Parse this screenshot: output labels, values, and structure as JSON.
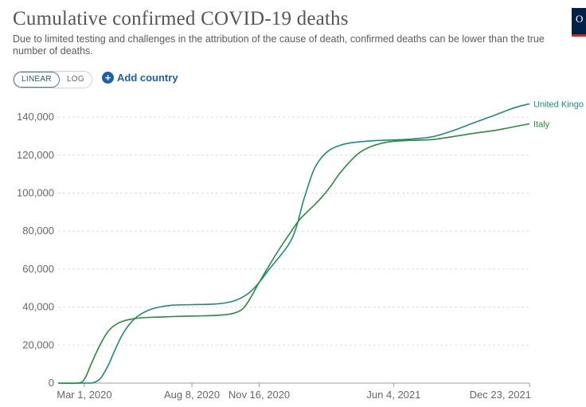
{
  "header": {
    "title": "Cumulative confirmed COVID-19 deaths",
    "subtitle": "Due to limited testing and challenges in the attribution of the cause of death, confirmed deaths can be lower than the true number of deaths.",
    "logo_text": "O"
  },
  "controls": {
    "scale_options": [
      "LINEAR",
      "LOG"
    ],
    "selected_scale": "LINEAR",
    "add_country_label": "Add country",
    "add_icon": "plus-circle-icon"
  },
  "colors": {
    "united_kingdom": "#1c8a7d",
    "italy": "#2a8a3e",
    "grid": "#dddddd",
    "axis": "#666666",
    "accent": "#1d5fa6"
  },
  "chart_data": {
    "type": "line",
    "title": "Cumulative confirmed COVID-19 deaths",
    "xlabel": "",
    "ylabel": "",
    "xlim": [
      "2020-01-22",
      "2021-12-23"
    ],
    "ylim": [
      0,
      148000
    ],
    "x_ticks": [
      "Mar 1, 2020",
      "Aug 8, 2020",
      "Nov 16, 2020",
      "Jun 4, 2021",
      "Dec 23, 2021"
    ],
    "y_ticks": [
      "0",
      "20,000",
      "40,000",
      "60,000",
      "80,000",
      "100,000",
      "120,000",
      "140,000"
    ],
    "y_tick_values": [
      0,
      20000,
      40000,
      60000,
      80000,
      100000,
      120000,
      140000
    ],
    "grid": true,
    "legend": "line-end labels",
    "series": [
      {
        "name": "United Kingdom",
        "display_label": "United Kingo",
        "color": "#1c8a7d",
        "points": [
          [
            "2020-01-22",
            0
          ],
          [
            "2020-03-05",
            0
          ],
          [
            "2020-03-15",
            300
          ],
          [
            "2020-03-25",
            2500
          ],
          [
            "2020-04-05",
            9000
          ],
          [
            "2020-04-15",
            17000
          ],
          [
            "2020-04-25",
            24500
          ],
          [
            "2020-05-05",
            30000
          ],
          [
            "2020-05-15",
            34000
          ],
          [
            "2020-05-25",
            36500
          ],
          [
            "2020-06-05",
            38500
          ],
          [
            "2020-06-20",
            40000
          ],
          [
            "2020-07-10",
            41000
          ],
          [
            "2020-08-08",
            41300
          ],
          [
            "2020-09-10",
            41600
          ],
          [
            "2020-10-01",
            42500
          ],
          [
            "2020-10-15",
            44000
          ],
          [
            "2020-11-01",
            47500
          ],
          [
            "2020-11-16",
            53000
          ],
          [
            "2020-12-01",
            60000
          ],
          [
            "2020-12-15",
            66000
          ],
          [
            "2020-12-28",
            72000
          ],
          [
            "2021-01-05",
            77000
          ],
          [
            "2021-01-12",
            84000
          ],
          [
            "2021-01-20",
            95000
          ],
          [
            "2021-01-28",
            104000
          ],
          [
            "2021-02-05",
            112000
          ],
          [
            "2021-02-15",
            118000
          ],
          [
            "2021-02-28",
            122500
          ],
          [
            "2021-03-15",
            125000
          ],
          [
            "2021-04-01",
            126500
          ],
          [
            "2021-05-01",
            127500
          ],
          [
            "2021-06-04",
            128000
          ],
          [
            "2021-07-01",
            128500
          ],
          [
            "2021-08-01",
            129700
          ],
          [
            "2021-09-01",
            133000
          ],
          [
            "2021-10-01",
            137000
          ],
          [
            "2021-11-01",
            141000
          ],
          [
            "2021-12-01",
            145000
          ],
          [
            "2021-12-23",
            147000
          ]
        ]
      },
      {
        "name": "Italy",
        "display_label": "Italy",
        "color": "#2a8a3e",
        "points": [
          [
            "2020-01-22",
            0
          ],
          [
            "2020-02-20",
            0
          ],
          [
            "2020-03-01",
            2000
          ],
          [
            "2020-03-10",
            9000
          ],
          [
            "2020-03-20",
            17000
          ],
          [
            "2020-04-01",
            25000
          ],
          [
            "2020-04-10",
            29000
          ],
          [
            "2020-04-20",
            31500
          ],
          [
            "2020-05-01",
            33000
          ],
          [
            "2020-05-15",
            34000
          ],
          [
            "2020-06-05",
            34600
          ],
          [
            "2020-07-10",
            35000
          ],
          [
            "2020-08-08",
            35300
          ],
          [
            "2020-09-10",
            35600
          ],
          [
            "2020-10-01",
            36200
          ],
          [
            "2020-10-15",
            37500
          ],
          [
            "2020-10-25",
            40000
          ],
          [
            "2020-11-05",
            46000
          ],
          [
            "2020-11-16",
            53000
          ],
          [
            "2020-12-01",
            62000
          ],
          [
            "2020-12-15",
            70000
          ],
          [
            "2021-01-01",
            79000
          ],
          [
            "2021-01-15",
            86000
          ],
          [
            "2021-02-01",
            92000
          ],
          [
            "2021-02-15",
            97000
          ],
          [
            "2021-03-01",
            103000
          ],
          [
            "2021-03-15",
            110000
          ],
          [
            "2021-04-01",
            117000
          ],
          [
            "2021-04-15",
            121500
          ],
          [
            "2021-05-01",
            124500
          ],
          [
            "2021-05-20",
            126500
          ],
          [
            "2021-06-04",
            127300
          ],
          [
            "2021-07-01",
            127800
          ],
          [
            "2021-08-01",
            128200
          ],
          [
            "2021-09-01",
            129800
          ],
          [
            "2021-10-01",
            131500
          ],
          [
            "2021-11-01",
            133000
          ],
          [
            "2021-12-01",
            135000
          ],
          [
            "2021-12-23",
            136500
          ]
        ]
      }
    ]
  }
}
